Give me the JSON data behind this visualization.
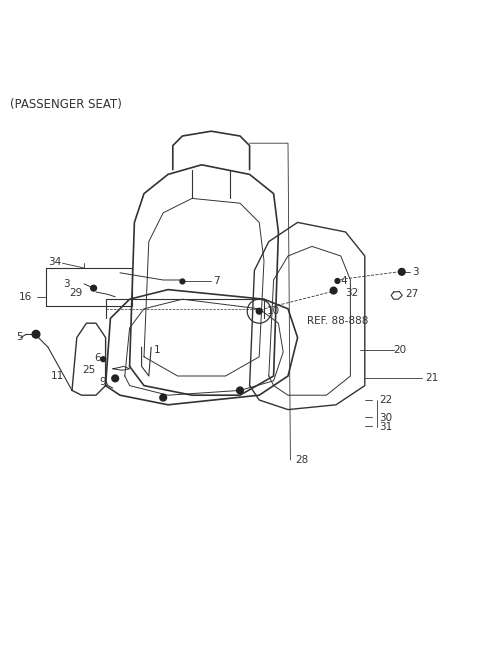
{
  "title": "(PASSENGER SEAT)",
  "bg_color": "#ffffff",
  "line_color": "#333333",
  "label_color": "#333333",
  "ref_text": "REF. 88-888"
}
